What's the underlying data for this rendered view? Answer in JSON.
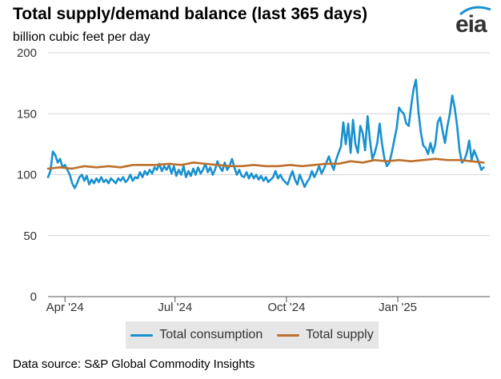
{
  "header": {
    "title": "Total supply/demand balance (last 365 days)",
    "subtitle": "billion cubic feet per day",
    "logo_text": "eia"
  },
  "footer": {
    "source": "Data source: S&P Global Commodity Insights"
  },
  "colors": {
    "consumption": "#1991cf",
    "supply": "#bd6f2d",
    "grid": "#d4d4d4",
    "axis": "#555555"
  },
  "chart_data": {
    "type": "line",
    "title": "Total supply/demand balance (last 365 days)",
    "ylabel": "billion cubic feet per day",
    "xlabel": "",
    "ylim": [
      0,
      200
    ],
    "xlim": [
      0,
      365
    ],
    "yticks": [
      0,
      50,
      100,
      150,
      200
    ],
    "xticks": [
      {
        "label": "Apr '24",
        "x": 14
      },
      {
        "label": "Jul '24",
        "x": 105
      },
      {
        "label": "Oct '24",
        "x": 197
      },
      {
        "label": "Jan '25",
        "x": 289
      }
    ],
    "legend": {
      "placement": "bottom",
      "entries": [
        "Total consumption",
        "Total supply"
      ]
    },
    "series": [
      {
        "name": "Total consumption",
        "points": [
          [
            0,
            98
          ],
          [
            2,
            103
          ],
          [
            4,
            119
          ],
          [
            6,
            116
          ],
          [
            8,
            110
          ],
          [
            10,
            113
          ],
          [
            12,
            106
          ],
          [
            14,
            108
          ],
          [
            16,
            104
          ],
          [
            18,
            100
          ],
          [
            20,
            93
          ],
          [
            22,
            89
          ],
          [
            24,
            93
          ],
          [
            26,
            98
          ],
          [
            28,
            100
          ],
          [
            30,
            95
          ],
          [
            32,
            99
          ],
          [
            34,
            92
          ],
          [
            36,
            96
          ],
          [
            38,
            93
          ],
          [
            40,
            97
          ],
          [
            42,
            94
          ],
          [
            44,
            98
          ],
          [
            46,
            94
          ],
          [
            48,
            96
          ],
          [
            50,
            93
          ],
          [
            52,
            97
          ],
          [
            54,
            95
          ],
          [
            56,
            93
          ],
          [
            58,
            97
          ],
          [
            60,
            95
          ],
          [
            62,
            98
          ],
          [
            64,
            94
          ],
          [
            66,
            96
          ],
          [
            68,
            100
          ],
          [
            70,
            95
          ],
          [
            72,
            98
          ],
          [
            74,
            97
          ],
          [
            76,
            102
          ],
          [
            78,
            98
          ],
          [
            80,
            103
          ],
          [
            82,
            100
          ],
          [
            84,
            104
          ],
          [
            86,
            101
          ],
          [
            88,
            106
          ],
          [
            90,
            104
          ],
          [
            92,
            109
          ],
          [
            94,
            103
          ],
          [
            96,
            107
          ],
          [
            98,
            104
          ],
          [
            100,
            108
          ],
          [
            102,
            101
          ],
          [
            104,
            107
          ],
          [
            106,
            99
          ],
          [
            108,
            104
          ],
          [
            110,
            100
          ],
          [
            112,
            107
          ],
          [
            114,
            98
          ],
          [
            116,
            103
          ],
          [
            118,
            99
          ],
          [
            120,
            105
          ],
          [
            122,
            100
          ],
          [
            124,
            106
          ],
          [
            126,
            101
          ],
          [
            128,
            104
          ],
          [
            130,
            109
          ],
          [
            132,
            102
          ],
          [
            134,
            106
          ],
          [
            136,
            100
          ],
          [
            138,
            104
          ],
          [
            140,
            111
          ],
          [
            142,
            106
          ],
          [
            144,
            103
          ],
          [
            146,
            110
          ],
          [
            148,
            104
          ],
          [
            150,
            107
          ],
          [
            152,
            113
          ],
          [
            154,
            106
          ],
          [
            156,
            100
          ],
          [
            158,
            104
          ],
          [
            160,
            99
          ],
          [
            162,
            98
          ],
          [
            164,
            102
          ],
          [
            166,
            97
          ],
          [
            168,
            101
          ],
          [
            170,
            97
          ],
          [
            172,
            100
          ],
          [
            174,
            96
          ],
          [
            176,
            99
          ],
          [
            178,
            95
          ],
          [
            180,
            98
          ],
          [
            182,
            94
          ],
          [
            184,
            96
          ],
          [
            186,
            98
          ],
          [
            188,
            103
          ],
          [
            190,
            97
          ],
          [
            192,
            100
          ],
          [
            194,
            96
          ],
          [
            196,
            94
          ],
          [
            198,
            92
          ],
          [
            200,
            98
          ],
          [
            202,
            103
          ],
          [
            204,
            96
          ],
          [
            206,
            92
          ],
          [
            208,
            100
          ],
          [
            210,
            95
          ],
          [
            212,
            90
          ],
          [
            214,
            94
          ],
          [
            216,
            97
          ],
          [
            218,
            103
          ],
          [
            220,
            98
          ],
          [
            222,
            102
          ],
          [
            224,
            107
          ],
          [
            226,
            101
          ],
          [
            228,
            105
          ],
          [
            230,
            110
          ],
          [
            232,
            115
          ],
          [
            234,
            109
          ],
          [
            236,
            104
          ],
          [
            238,
            112
          ],
          [
            240,
            118
          ],
          [
            242,
            123
          ],
          [
            244,
            143
          ],
          [
            246,
            125
          ],
          [
            248,
            142
          ],
          [
            250,
            118
          ],
          [
            252,
            145
          ],
          [
            254,
            125
          ],
          [
            256,
            118
          ],
          [
            258,
            140
          ],
          [
            260,
            134
          ],
          [
            262,
            120
          ],
          [
            264,
            148
          ],
          [
            266,
            128
          ],
          [
            268,
            113
          ],
          [
            270,
            118
          ],
          [
            272,
            126
          ],
          [
            274,
            142
          ],
          [
            276,
            125
          ],
          [
            278,
            113
          ],
          [
            280,
            107
          ],
          [
            282,
            110
          ],
          [
            284,
            118
          ],
          [
            286,
            128
          ],
          [
            288,
            138
          ],
          [
            290,
            155
          ],
          [
            292,
            152
          ],
          [
            294,
            150
          ],
          [
            296,
            142
          ],
          [
            298,
            140
          ],
          [
            300,
            156
          ],
          [
            302,
            170
          ],
          [
            304,
            178
          ],
          [
            306,
            152
          ],
          [
            308,
            135
          ],
          [
            310,
            124
          ],
          [
            312,
            122
          ],
          [
            314,
            117
          ],
          [
            316,
            126
          ],
          [
            318,
            118
          ],
          [
            320,
            125
          ],
          [
            322,
            143
          ],
          [
            324,
            147
          ],
          [
            326,
            136
          ],
          [
            328,
            126
          ],
          [
            330,
            140
          ],
          [
            332,
            150
          ],
          [
            334,
            165
          ],
          [
            336,
            155
          ],
          [
            338,
            140
          ],
          [
            340,
            120
          ],
          [
            342,
            110
          ],
          [
            344,
            112
          ],
          [
            346,
            118
          ],
          [
            348,
            128
          ],
          [
            350,
            112
          ],
          [
            352,
            120
          ],
          [
            354,
            115
          ],
          [
            356,
            110
          ],
          [
            358,
            104
          ],
          [
            360,
            106
          ]
        ]
      },
      {
        "name": "Total supply",
        "points": [
          [
            0,
            105
          ],
          [
            10,
            106
          ],
          [
            20,
            105
          ],
          [
            30,
            107
          ],
          [
            40,
            106
          ],
          [
            50,
            107
          ],
          [
            60,
            106
          ],
          [
            70,
            108
          ],
          [
            80,
            108
          ],
          [
            90,
            108
          ],
          [
            100,
            109
          ],
          [
            110,
            108
          ],
          [
            120,
            110
          ],
          [
            130,
            109
          ],
          [
            140,
            108
          ],
          [
            150,
            107
          ],
          [
            160,
            107
          ],
          [
            170,
            108
          ],
          [
            180,
            107
          ],
          [
            190,
            107
          ],
          [
            200,
            108
          ],
          [
            210,
            107
          ],
          [
            220,
            108
          ],
          [
            230,
            109
          ],
          [
            240,
            109
          ],
          [
            250,
            111
          ],
          [
            260,
            110
          ],
          [
            270,
            112
          ],
          [
            280,
            111
          ],
          [
            290,
            112
          ],
          [
            300,
            111
          ],
          [
            310,
            112
          ],
          [
            320,
            113
          ],
          [
            330,
            112
          ],
          [
            340,
            112
          ],
          [
            350,
            111
          ],
          [
            360,
            110
          ]
        ]
      }
    ]
  }
}
